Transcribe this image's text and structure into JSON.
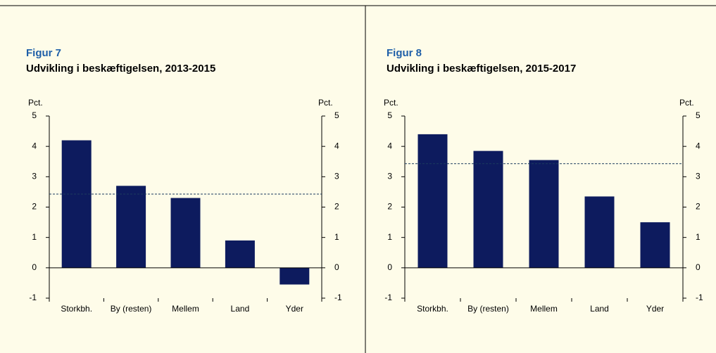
{
  "chart_data": [
    {
      "type": "bar",
      "figure": "Figur 7",
      "title": "Udvikling i beskæftigelsen, 2013-2015",
      "y_label": "Pct.",
      "categories": [
        "Storkbh.",
        "By (resten)",
        "Mellem",
        "Land",
        "Yder"
      ],
      "values": [
        4.2,
        2.7,
        2.3,
        0.9,
        -0.55
      ],
      "color": "#0d1b5e",
      "reference": 2.43,
      "ylim": [
        -1,
        5
      ],
      "yticks": [
        -1,
        0,
        1,
        2,
        3,
        4,
        5
      ]
    },
    {
      "type": "bar",
      "figure": "Figur 8",
      "title": "Udvikling i beskæftigelsen, 2015-2017",
      "y_label": "Pct.",
      "categories": [
        "Storkbh.",
        "By (resten)",
        "Mellem",
        "Land",
        "Yder"
      ],
      "values": [
        4.4,
        3.85,
        3.55,
        2.35,
        1.5
      ],
      "color": "#0d1b5e",
      "reference": 3.43,
      "ylim": [
        -1,
        5
      ],
      "yticks": [
        -1,
        0,
        1,
        2,
        3,
        4,
        5
      ]
    }
  ]
}
